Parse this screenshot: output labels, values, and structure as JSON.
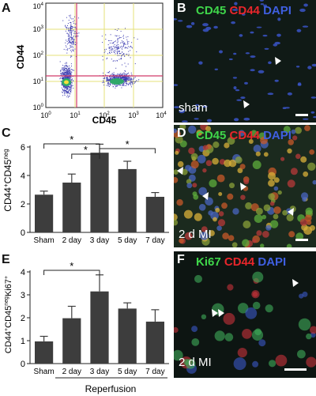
{
  "figure": {
    "panels": {
      "A": {
        "label": "A",
        "xlabel": "CD45",
        "ylabel": "CD44",
        "x_ticks": [
          {
            "base": "10",
            "exp": "0"
          },
          {
            "base": "10",
            "exp": "1"
          },
          {
            "base": "10",
            "exp": "2"
          },
          {
            "base": "10",
            "exp": "3"
          },
          {
            "base": "10",
            "exp": "4"
          }
        ],
        "y_ticks": [
          {
            "base": "10",
            "exp": "0"
          },
          {
            "base": "10",
            "exp": "1"
          },
          {
            "base": "10",
            "exp": "2"
          },
          {
            "base": "10",
            "exp": "3"
          },
          {
            "base": "10",
            "exp": "4"
          }
        ]
      },
      "B": {
        "label": "B",
        "stain": [
          "CD45",
          "CD44",
          "DAPI"
        ],
        "condition": "sham"
      },
      "C": {
        "label": "C",
        "ylabel_main": "CD44",
        "ylabel_sup1": "+",
        "ylabel_mid": "CD45",
        "ylabel_sup2": "neg"
      },
      "D": {
        "label": "D",
        "stain": [
          "CD45",
          "CD44",
          "DAPI"
        ],
        "condition": "2 d MI"
      },
      "E": {
        "label": "E",
        "ylabel_main": "CD44",
        "ylabel_sup1": "+",
        "ylabel_mid": "CD45",
        "ylabel_sup2": "neg",
        "ylabel_tail": "Ki67",
        "ylabel_sup3": "+",
        "xlabel": "Reperfusion"
      },
      "F": {
        "label": "F",
        "stain": [
          "Ki67",
          "CD44",
          "DAPI"
        ],
        "condition": "2 d MI"
      }
    },
    "significance_mark": "*",
    "stain_colors": {
      "CD45": "#3fd64a",
      "Ki67": "#3fd64a",
      "CD44": "#e8262b",
      "DAPI": "#3f5fe0"
    }
  },
  "chart_data": [
    {
      "panel": "C",
      "type": "bar",
      "categories": [
        "Sham",
        "2 day",
        "3 day",
        "5 day",
        "7 day"
      ],
      "values": [
        2.65,
        3.5,
        5.6,
        4.45,
        2.5
      ],
      "errors": [
        0.25,
        0.6,
        0.6,
        0.55,
        0.3
      ],
      "ylim": [
        0,
        6
      ],
      "yticks": [
        0,
        2,
        4,
        6
      ],
      "significance": [
        {
          "from": 0,
          "to": 2
        },
        {
          "from": 1,
          "to": 2
        },
        {
          "from": 2,
          "to": 4
        }
      ]
    },
    {
      "panel": "E",
      "type": "bar",
      "categories": [
        "Sham",
        "2 day",
        "3 day",
        "5 day",
        "7 day"
      ],
      "values": [
        0.97,
        1.98,
        3.15,
        2.4,
        1.83
      ],
      "errors": [
        0.22,
        0.52,
        0.72,
        0.25,
        0.52
      ],
      "ylim": [
        0,
        4
      ],
      "yticks": [
        0,
        1,
        2,
        3,
        4
      ],
      "significance": [
        {
          "from": 0,
          "to": 2
        }
      ]
    }
  ]
}
